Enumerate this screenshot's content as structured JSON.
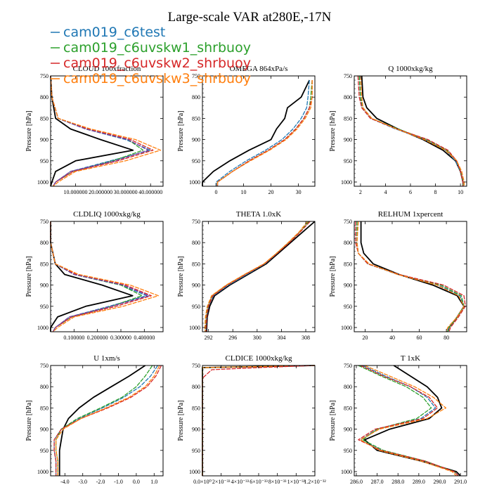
{
  "title": "Large-scale VAR at280E,-17N",
  "legend": [
    {
      "name": "cam019_c6test",
      "color": "#1f77b4"
    },
    {
      "name": "cam019_c6uvskw1_shrbuoy",
      "color": "#2ca02c"
    },
    {
      "name": "cam019_c6uvskw2_shrbuoy",
      "color": "#d62728"
    },
    {
      "name": "cam019_c6uvskw3_shrbuoy",
      "color": "#ff7f0e"
    }
  ],
  "chart_data": [
    {
      "type": "line",
      "title": "CLOUD 100xfraction",
      "ylabel": "Pressure [hPa]",
      "xlim": [
        0,
        45
      ],
      "ylim": [
        750,
        1010
      ],
      "xticks": [
        10,
        20,
        30,
        40
      ],
      "xtick_labels": [
        "10.000000",
        "20.000000",
        "30.000000",
        "40.000000"
      ],
      "yticks": [
        750,
        800,
        850,
        900,
        950,
        1000
      ],
      "levels": [
        750,
        800,
        850,
        875,
        900,
        925,
        950,
        975,
        1000,
        1010
      ],
      "series": [
        {
          "color": "#000000",
          "x": [
            0,
            0.5,
            2,
            8,
            20,
            33,
            10,
            2,
            0.5,
            0
          ]
        },
        {
          "color": "#1f77b4",
          "x": [
            0,
            0.5,
            3,
            14,
            30,
            40,
            24,
            8,
            2,
            1
          ]
        },
        {
          "color": "#2ca02c",
          "x": [
            0,
            0.5,
            3,
            14,
            31,
            37,
            25,
            9,
            2,
            1
          ]
        },
        {
          "color": "#d62728",
          "x": [
            0,
            0.5,
            3,
            15,
            32,
            41,
            27,
            9,
            2,
            1
          ]
        },
        {
          "color": "#7b3fa0",
          "x": [
            0,
            0.5,
            3,
            14,
            31,
            39,
            26,
            8,
            2,
            1
          ]
        },
        {
          "color": "#ff7f0e",
          "x": [
            0,
            0.5,
            3,
            16,
            34,
            44,
            30,
            10,
            3,
            1
          ]
        }
      ]
    },
    {
      "type": "line",
      "title": "OMEGA 864xPa/s",
      "ylabel": "Pressure [hPa]",
      "xlim": [
        -5,
        36
      ],
      "ylim": [
        750,
        1010
      ],
      "xticks": [
        0,
        10,
        20,
        30
      ],
      "xtick_labels": [
        "0",
        "10",
        "20",
        "30"
      ],
      "yticks": [
        750,
        800,
        850,
        900,
        950,
        1000
      ],
      "levels": [
        760,
        800,
        825,
        850,
        875,
        900,
        925,
        950,
        975,
        1000,
        1010
      ],
      "series": [
        {
          "color": "#000000",
          "x": [
            34,
            31,
            26,
            25,
            22,
            20,
            12,
            5,
            -1,
            -5,
            -5
          ]
        },
        {
          "color": "#1f77b4",
          "x": [
            34,
            33.5,
            33,
            31,
            28,
            24,
            18,
            11,
            5,
            0,
            0
          ]
        },
        {
          "color": "#2ca02c",
          "x": [
            35,
            34.5,
            34,
            32,
            29,
            25,
            19,
            12,
            6,
            0.5,
            0.5
          ]
        },
        {
          "color": "#d62728",
          "x": [
            35,
            35,
            34,
            32,
            29,
            25,
            19,
            12,
            6,
            0.5,
            0.5
          ]
        },
        {
          "color": "#ff7f0e",
          "x": [
            35,
            35,
            34.5,
            32.5,
            29.5,
            25.5,
            19.5,
            12.5,
            6,
            0.5,
            0.5
          ]
        }
      ]
    },
    {
      "type": "line",
      "title": "Q 1000xkg/kg",
      "ylabel": "Pressure [hPa]",
      "xlim": [
        1.5,
        10.5
      ],
      "ylim": [
        750,
        1010
      ],
      "xticks": [
        2,
        4,
        6,
        8,
        10
      ],
      "xtick_labels": [
        "2",
        "4",
        "6",
        "8",
        "10"
      ],
      "yticks": [
        750,
        800,
        850,
        900,
        950,
        1000
      ],
      "levels": [
        750,
        800,
        825,
        850,
        875,
        900,
        925,
        950,
        975,
        1000,
        1010
      ],
      "series": [
        {
          "color": "#000000",
          "x": [
            2.1,
            2.2,
            2.5,
            3.3,
            5.0,
            7.0,
            8.6,
            9.6,
            10.0,
            10.2,
            10.2
          ]
        },
        {
          "color": "#1f77b4",
          "x": [
            1.9,
            2.0,
            2.1,
            2.8,
            4.8,
            7.2,
            8.8,
            9.6,
            10.0,
            10.2,
            10.2
          ]
        },
        {
          "color": "#2ca02c",
          "x": [
            1.9,
            2.0,
            2.2,
            2.9,
            5.0,
            7.3,
            8.9,
            9.7,
            10.0,
            10.2,
            10.2
          ]
        },
        {
          "color": "#d62728",
          "x": [
            1.8,
            1.9,
            2.1,
            2.8,
            4.9,
            7.4,
            9.0,
            9.7,
            10.0,
            10.2,
            10.2
          ]
        },
        {
          "color": "#ff7f0e",
          "x": [
            2.0,
            2.1,
            2.2,
            2.9,
            4.9,
            7.1,
            8.8,
            9.7,
            10.1,
            10.3,
            10.3
          ]
        }
      ]
    },
    {
      "type": "line",
      "title": "CLDLIQ 1000xkg/kg",
      "ylabel": "Pressure [hPa]",
      "xlim": [
        0,
        0.48
      ],
      "ylim": [
        750,
        1010
      ],
      "xticks": [
        0.1,
        0.2,
        0.3,
        0.4
      ],
      "xtick_labels": [
        "0.100000",
        "0.200000",
        "0.300000",
        "0.400000"
      ],
      "yticks": [
        750,
        800,
        850,
        900,
        950,
        1000
      ],
      "levels": [
        750,
        800,
        850,
        875,
        900,
        925,
        950,
        975,
        1000,
        1010
      ],
      "series": [
        {
          "color": "#000000",
          "x": [
            0,
            0,
            0.02,
            0.06,
            0.22,
            0.35,
            0.15,
            0.03,
            0,
            0
          ]
        },
        {
          "color": "#1f77b4",
          "x": [
            0,
            0,
            0.02,
            0.1,
            0.3,
            0.41,
            0.25,
            0.08,
            0.02,
            0.01
          ]
        },
        {
          "color": "#2ca02c",
          "x": [
            0,
            0,
            0.02,
            0.1,
            0.3,
            0.39,
            0.26,
            0.09,
            0.02,
            0.01
          ]
        },
        {
          "color": "#d62728",
          "x": [
            0,
            0,
            0.02,
            0.11,
            0.32,
            0.43,
            0.28,
            0.09,
            0.02,
            0.01
          ]
        },
        {
          "color": "#7b3fa0",
          "x": [
            0,
            0,
            0.02,
            0.1,
            0.31,
            0.42,
            0.26,
            0.08,
            0.02,
            0.01
          ]
        },
        {
          "color": "#ff7f0e",
          "x": [
            0,
            0,
            0.02,
            0.12,
            0.34,
            0.46,
            0.31,
            0.1,
            0.03,
            0.01
          ]
        }
      ]
    },
    {
      "type": "line",
      "title": "THETA 1.0xK",
      "ylabel": "Pressure [hPa]",
      "xlim": [
        291,
        309.5
      ],
      "ylim": [
        750,
        1010
      ],
      "xticks": [
        292,
        296,
        300,
        304,
        308
      ],
      "xtick_labels": [
        "292",
        "296",
        "300",
        "304",
        "308"
      ],
      "yticks": [
        750,
        800,
        850,
        900,
        950,
        1000
      ],
      "levels": [
        750,
        775,
        800,
        825,
        850,
        875,
        900,
        925,
        950,
        975,
        1000,
        1010
      ],
      "series": [
        {
          "color": "#000000",
          "x": [
            309.5,
            307.5,
            305.5,
            303.5,
            301.5,
            298.5,
            295.5,
            293.0,
            292.2,
            291.8,
            291.7,
            291.7
          ]
        },
        {
          "color": "#1f77b4",
          "x": [
            308.5,
            307.0,
            305.2,
            303.3,
            301.3,
            298.3,
            295.3,
            292.8,
            292.0,
            291.7,
            291.6,
            291.6
          ]
        },
        {
          "color": "#2ca02c",
          "x": [
            308.5,
            307.0,
            305.2,
            303.2,
            301.2,
            298.0,
            295.0,
            292.6,
            291.9,
            291.6,
            291.5,
            291.5
          ]
        },
        {
          "color": "#d62728",
          "x": [
            308.7,
            307.1,
            305.3,
            303.3,
            301.2,
            298.1,
            295.1,
            292.7,
            292.0,
            291.7,
            291.6,
            291.6
          ]
        },
        {
          "color": "#ff7f0e",
          "x": [
            308.3,
            306.9,
            305.1,
            303.2,
            301.1,
            297.9,
            294.9,
            292.5,
            291.8,
            291.5,
            291.4,
            291.4
          ]
        }
      ]
    },
    {
      "type": "line",
      "title": "RELHUM 1xpercent",
      "ylabel": "Pressure [hPa]",
      "xlim": [
        12,
        95
      ],
      "ylim": [
        750,
        1010
      ],
      "xticks": [
        20,
        40,
        60,
        80
      ],
      "xtick_labels": [
        "20",
        "40",
        "60",
        "80"
      ],
      "yticks": [
        750,
        800,
        850,
        900,
        950,
        1000
      ],
      "levels": [
        750,
        800,
        825,
        850,
        875,
        900,
        925,
        950,
        975,
        1000,
        1010
      ],
      "series": [
        {
          "color": "#000000",
          "x": [
            17,
            17,
            19,
            26,
            45,
            70,
            88,
            93,
            88,
            82,
            81
          ]
        },
        {
          "color": "#1f77b4",
          "x": [
            14,
            14,
            15,
            22,
            44,
            74,
            90,
            93,
            88,
            82,
            81
          ]
        },
        {
          "color": "#2ca02c",
          "x": [
            14,
            14,
            15,
            22,
            45,
            76,
            91,
            93,
            88,
            82,
            81
          ]
        },
        {
          "color": "#d62728",
          "x": [
            13,
            13,
            15,
            22,
            45,
            78,
            93,
            94,
            89,
            83,
            82
          ]
        },
        {
          "color": "#ff7f0e",
          "x": [
            15,
            14,
            15,
            23,
            44,
            73,
            89,
            93,
            88,
            81,
            80
          ]
        }
      ]
    },
    {
      "type": "line",
      "title": "U 1xm/s",
      "ylabel": "Pressure [hPa]",
      "xlim": [
        -4.8,
        1.5
      ],
      "ylim": [
        750,
        1010
      ],
      "xticks": [
        -4,
        -3,
        -2,
        -1,
        0,
        1
      ],
      "xtick_labels": [
        "-4.0",
        "-3.0",
        "-2.0",
        "-1.0",
        "0.0",
        "1.0"
      ],
      "yticks": [
        750,
        800,
        850,
        900,
        950,
        1000
      ],
      "levels": [
        750,
        775,
        800,
        825,
        850,
        875,
        900,
        925,
        950,
        975,
        1000,
        1010
      ],
      "series": [
        {
          "color": "#000000",
          "x": [
            0.5,
            -0.4,
            -1.4,
            -2.4,
            -3.2,
            -3.8,
            -4.1,
            -4.2,
            -4.3,
            -4.3,
            -4.3,
            -4.3
          ]
        },
        {
          "color": "#1f77b4",
          "x": [
            1.2,
            0.8,
            0.2,
            -0.7,
            -1.9,
            -3.2,
            -4.2,
            -4.6,
            -4.6,
            -4.5,
            -4.5,
            -4.5
          ]
        },
        {
          "color": "#2ca02c",
          "x": [
            0.9,
            0.5,
            0.0,
            -0.8,
            -2.0,
            -3.3,
            -4.2,
            -4.5,
            -4.5,
            -4.4,
            -4.4,
            -4.4
          ]
        },
        {
          "color": "#d62728",
          "x": [
            1.4,
            1.1,
            0.6,
            -0.3,
            -1.6,
            -3.1,
            -4.2,
            -4.6,
            -4.6,
            -4.5,
            -4.5,
            -4.5
          ]
        },
        {
          "color": "#ff7f0e",
          "x": [
            1.3,
            1.0,
            0.5,
            -0.4,
            -1.7,
            -3.1,
            -4.1,
            -4.5,
            -4.5,
            -4.4,
            -4.4,
            -4.4
          ]
        }
      ]
    },
    {
      "type": "line",
      "title": "CLDICE 1000xkg/kg",
      "ylabel": "Pressure [hPa]",
      "xlim": [
        0,
        1.2e-32
      ],
      "ylim": [
        750,
        1010
      ],
      "xticks": [
        0,
        2e-33,
        4e-33,
        6e-33,
        8e-33,
        1e-32,
        1.2e-32
      ],
      "xtick_labels": [
        "0.0×10⁰",
        "2×10⁻³³",
        "4×10⁻³³",
        "6×10⁻³³",
        "8×10⁻³³",
        "1×10⁻³²",
        "1.2×10⁻³²"
      ],
      "yticks": [
        750,
        800,
        850,
        900,
        950,
        1000
      ],
      "levels": [
        750,
        755,
        760,
        780,
        1010
      ],
      "series": [
        {
          "color": "#000000",
          "x": [
            1.2e-32,
            0,
            0,
            0,
            0
          ]
        },
        {
          "color": "#1f77b4",
          "x": [
            1.2e-32,
            0,
            0,
            0,
            0
          ]
        },
        {
          "color": "#2ca02c",
          "x": [
            1.2e-32,
            0,
            0,
            0,
            0
          ]
        },
        {
          "color": "#ff7f0e",
          "x": [
            1.2e-32,
            0,
            0,
            0,
            0
          ]
        },
        {
          "color": "#d62728",
          "x": [
            1.2e-32,
            6e-33,
            1e-33,
            0,
            0
          ]
        }
      ]
    },
    {
      "type": "line",
      "title": "T 1xK",
      "ylabel": "Pressure [hPa]",
      "xlim": [
        285.9,
        291.3
      ],
      "ylim": [
        750,
        1010
      ],
      "xticks": [
        286,
        287,
        288,
        289,
        290,
        291
      ],
      "xtick_labels": [
        "286.0",
        "287.0",
        "288.0",
        "289.0",
        "290.0",
        "291.0"
      ],
      "yticks": [
        750,
        800,
        850,
        900,
        950,
        1000
      ],
      "levels": [
        750,
        775,
        800,
        825,
        850,
        875,
        900,
        925,
        950,
        975,
        1000,
        1010
      ],
      "series": [
        {
          "color": "#000000",
          "x": [
            287.8,
            288.6,
            289.4,
            289.9,
            290.1,
            289.5,
            287.6,
            286.4,
            287.0,
            289.1,
            290.8,
            291.0
          ]
        },
        {
          "color": "#1f77b4",
          "x": [
            286.3,
            287.4,
            288.6,
            289.4,
            289.8,
            289.1,
            287.0,
            286.2,
            287.2,
            289.2,
            290.7,
            290.9
          ]
        },
        {
          "color": "#2ca02c",
          "x": [
            286.1,
            287.2,
            288.4,
            289.2,
            289.6,
            288.9,
            287.0,
            286.3,
            287.3,
            289.3,
            290.7,
            290.9
          ]
        },
        {
          "color": "#d62728",
          "x": [
            286.2,
            287.3,
            288.6,
            289.5,
            289.9,
            289.2,
            286.9,
            286.1,
            287.2,
            289.3,
            290.7,
            290.9
          ]
        },
        {
          "color": "#ff7f0e",
          "x": [
            286.4,
            287.6,
            288.8,
            289.7,
            290.3,
            289.4,
            287.1,
            286.2,
            287.1,
            289.1,
            290.6,
            290.8
          ]
        }
      ]
    }
  ]
}
